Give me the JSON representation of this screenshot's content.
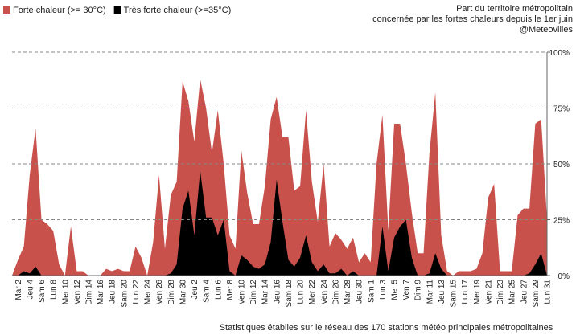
{
  "chart_data": {
    "type": "area",
    "title": "Part du territoire métropolitain",
    "subtitle": "concernée par les fortes chaleurs depuis le 1er juin",
    "source": "@Meteovilles",
    "note": "Statistiques établies sur le réseau des 170 stations météo principales métropolitaines",
    "categories": [
      null,
      "Mar 2",
      null,
      "Jeu 4",
      null,
      "Sam 6",
      null,
      "Lun 8",
      null,
      "Mer 10",
      null,
      "Ven 12",
      null,
      "Dim 14",
      null,
      "Mar 16",
      null,
      "Jeu 18",
      null,
      "Sam 20",
      null,
      "Lun 22",
      null,
      "Mer 24",
      null,
      "Ven 26",
      null,
      "Dim 28",
      null,
      "Mar 30",
      null,
      "Jeu 2",
      null,
      "Sam 4",
      null,
      "Lun 6",
      null,
      "Mer 8",
      null,
      "Ven 10",
      null,
      "Dim 12",
      null,
      "Mar 14",
      null,
      "Jeu 16",
      null,
      "Sam 18",
      null,
      "Lun 20",
      null,
      "Mer 22",
      null,
      "Ven 24",
      null,
      "Dim 26",
      null,
      "Mar 28",
      null,
      "Jeu 30",
      null,
      "Sam 1",
      null,
      "Lun 3",
      null,
      "Mer 5",
      null,
      "Ven 7",
      null,
      "Dim 9",
      null,
      "Mar 11",
      null,
      "Jeu 13",
      null,
      "Sam 15",
      null,
      "Lun 17",
      null,
      "Mer 19",
      null,
      "Ven 21",
      null,
      "Dim 23",
      null,
      "Mar 25",
      null,
      "Jeu 27",
      null,
      "Sam 29",
      null,
      "Lun 31"
    ],
    "series": [
      {
        "name": "Forte chaleur (>= 30°C)",
        "color": "#c9514c",
        "values": [
          0,
          7,
          13,
          45,
          66,
          25,
          23,
          20,
          5,
          0,
          22,
          2,
          2,
          0,
          0,
          0,
          3,
          2,
          3,
          2,
          2,
          13,
          8,
          0,
          15,
          45,
          12,
          36,
          42,
          87,
          78,
          60,
          88,
          75,
          55,
          74,
          50,
          18,
          12,
          56,
          37,
          23,
          23,
          40,
          70,
          80,
          62,
          62,
          38,
          40,
          74,
          42,
          24,
          50,
          13,
          19,
          16,
          12,
          17,
          6,
          10,
          6,
          50,
          72,
          20,
          68,
          68,
          50,
          28,
          10,
          10,
          55,
          82,
          18,
          2,
          0,
          2,
          2,
          2,
          3,
          10,
          35,
          41,
          2,
          2,
          2,
          27,
          30,
          30,
          68,
          70,
          25
        ]
      },
      {
        "name": "Très forte chaleur (>=35°C)",
        "color": "#000000",
        "values": [
          0,
          0,
          2,
          1,
          4,
          0,
          0,
          0,
          0,
          0,
          0,
          0,
          0,
          0,
          0,
          0,
          0,
          0,
          0,
          0,
          0,
          0,
          0,
          0,
          0,
          0,
          0,
          1,
          5,
          30,
          38,
          18,
          47,
          26,
          26,
          18,
          25,
          2,
          0,
          9,
          7,
          4,
          3,
          5,
          15,
          43,
          24,
          7,
          4,
          8,
          18,
          6,
          2,
          5,
          1,
          1,
          3,
          0,
          2,
          0,
          0,
          0,
          0,
          22,
          2,
          17,
          22,
          25,
          8,
          0,
          0,
          1,
          10,
          3,
          0,
          0,
          0,
          0,
          0,
          0,
          0,
          0,
          0,
          0,
          0,
          0,
          0,
          0,
          1,
          5,
          10,
          0
        ]
      }
    ],
    "ylim": [
      0,
      100
    ],
    "yticks": [
      {
        "value": 0,
        "label": "0%"
      },
      {
        "value": 25,
        "label": "25%"
      },
      {
        "value": 50,
        "label": "50%"
      },
      {
        "value": 75,
        "label": "75%"
      },
      {
        "value": 100,
        "label": "100%"
      }
    ],
    "grid": true,
    "legend": "top-left"
  }
}
